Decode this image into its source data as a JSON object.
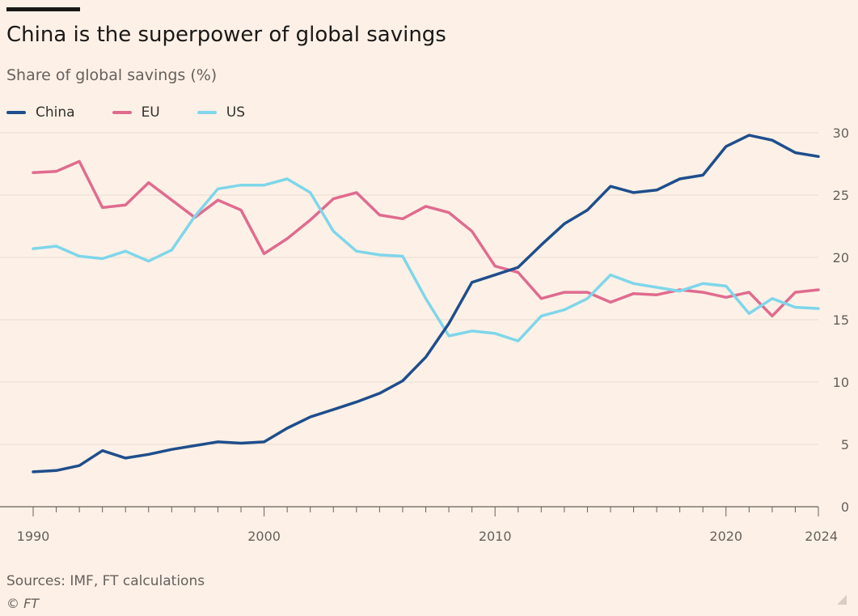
{
  "title": "China is the superpower of global savings",
  "subtitle": "Share of global savings (%)",
  "source": "Sources: IMF, FT calculations",
  "copyright": "© FT",
  "legend_position": "top-left",
  "chart_data": {
    "type": "line",
    "title": "China is the superpower of global savings",
    "subtitle": "Share of global savings (%)",
    "xlabel": "",
    "ylabel": "",
    "xlim": [
      1990,
      2024
    ],
    "ylim": [
      0,
      30
    ],
    "y_axis_side": "right",
    "grid": "horizontal",
    "x_tick_labels": [
      "1990",
      "2000",
      "2010",
      "2020",
      "2024"
    ],
    "x_ticks": [
      1990,
      2000,
      2010,
      2020,
      2024
    ],
    "y_tick_labels": [
      "0",
      "5",
      "10",
      "15",
      "20",
      "25",
      "30"
    ],
    "y_ticks": [
      0,
      5,
      10,
      15,
      20,
      25,
      30
    ],
    "x": [
      1990,
      1991,
      1992,
      1993,
      1994,
      1995,
      1996,
      1997,
      1998,
      1999,
      2000,
      2001,
      2002,
      2003,
      2004,
      2005,
      2006,
      2007,
      2008,
      2009,
      2010,
      2011,
      2012,
      2013,
      2014,
      2015,
      2016,
      2017,
      2018,
      2019,
      2020,
      2021,
      2022,
      2023,
      2024
    ],
    "series": [
      {
        "name": "China",
        "color": "#1f4e8c",
        "values": [
          2.8,
          2.9,
          3.3,
          4.5,
          3.9,
          4.2,
          4.6,
          4.9,
          5.2,
          5.1,
          5.2,
          6.3,
          7.2,
          7.8,
          8.4,
          9.1,
          10.1,
          12.0,
          14.7,
          18.0,
          18.6,
          19.2,
          21.0,
          22.7,
          23.8,
          25.7,
          25.2,
          25.4,
          26.3,
          26.6,
          28.9,
          29.8,
          29.4,
          28.4,
          28.1
        ]
      },
      {
        "name": "EU",
        "color": "#e06b8f",
        "values": [
          26.8,
          26.9,
          27.7,
          24.0,
          24.2,
          26.0,
          24.6,
          23.2,
          24.6,
          23.8,
          20.3,
          21.5,
          23.0,
          24.7,
          25.2,
          23.4,
          23.1,
          24.1,
          23.6,
          22.1,
          19.3,
          18.8,
          16.7,
          17.2,
          17.2,
          16.4,
          17.1,
          17.0,
          17.4,
          17.2,
          16.8,
          17.2,
          15.3,
          17.2,
          17.4
        ]
      },
      {
        "name": "US",
        "color": "#7fd6ea",
        "values": [
          20.7,
          20.9,
          20.1,
          19.9,
          20.5,
          19.7,
          20.6,
          23.3,
          25.5,
          25.8,
          25.8,
          26.3,
          25.2,
          22.1,
          20.5,
          20.2,
          20.1,
          16.7,
          13.7,
          14.1,
          13.9,
          13.3,
          15.3,
          15.8,
          16.7,
          18.6,
          17.9,
          17.6,
          17.3,
          17.9,
          17.7,
          15.5,
          16.7,
          16.0,
          15.9
        ]
      }
    ]
  }
}
